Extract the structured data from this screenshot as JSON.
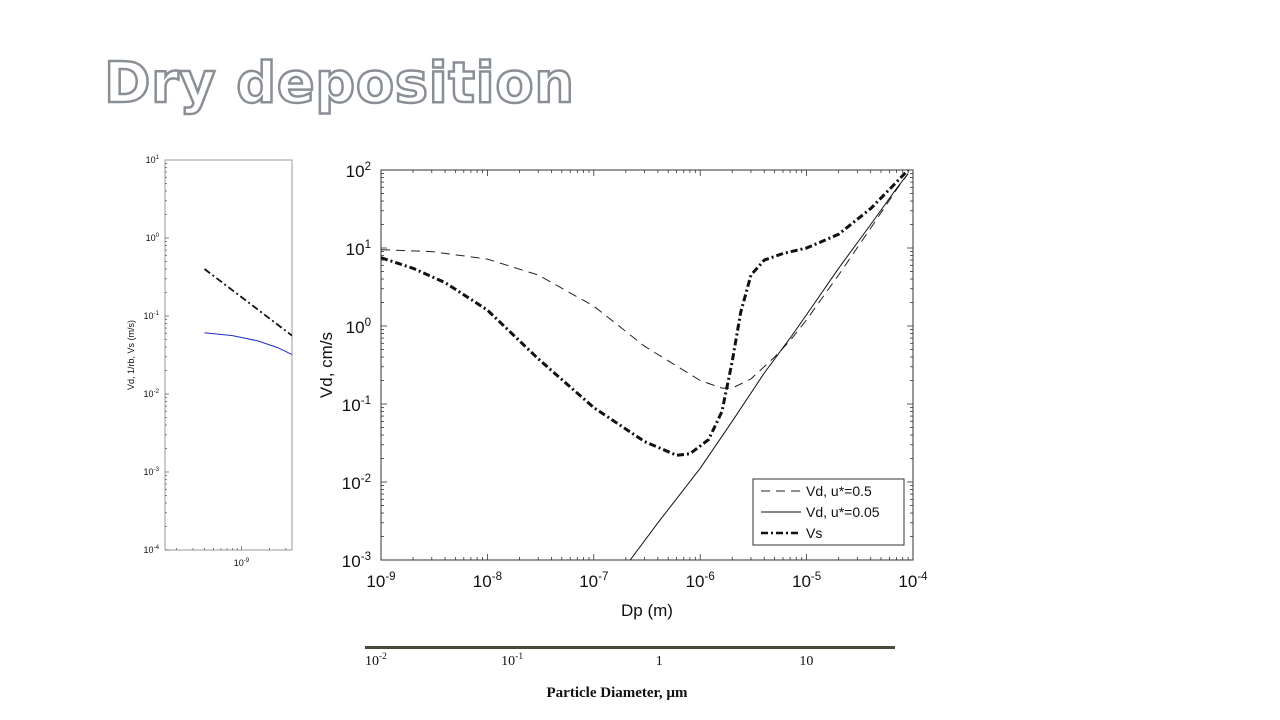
{
  "slide": {
    "title": "Dry deposition"
  },
  "chart_data": [
    {
      "id": "left-partial",
      "type": "line",
      "scale": "log-log",
      "xlim": [
        1.5e-10,
        3.5e-09
      ],
      "ylim": [
        0.0001,
        10
      ],
      "ylabel": "Vd, 1/rb, Vs (m/s)",
      "xlabel": "",
      "y_tick_labels": [
        {
          "v": 10,
          "b": "10",
          "e": "1"
        },
        {
          "v": 1,
          "b": "10",
          "e": "0"
        },
        {
          "v": 0.1,
          "b": "10",
          "e": "-1"
        },
        {
          "v": 0.01,
          "b": "10",
          "e": "-2"
        },
        {
          "v": 0.001,
          "b": "10",
          "e": "-3"
        },
        {
          "v": 0.0001,
          "b": "10",
          "e": "-4"
        }
      ],
      "x_tick_labels": [
        {
          "v": 1e-09,
          "b": "10",
          "e": "-9"
        }
      ],
      "series": [
        {
          "style": "dashdot",
          "color": "#111111",
          "x": [
            4e-10,
            3.5e-09
          ],
          "y": [
            0.4,
            0.056
          ]
        },
        {
          "style": "solid",
          "color": "#1f2fbf",
          "x": [
            4e-10,
            8e-10,
            1.5e-09,
            2.5e-09,
            3.5e-09
          ],
          "y": [
            0.061,
            0.056,
            0.048,
            0.039,
            0.032
          ]
        }
      ]
    },
    {
      "id": "main",
      "type": "line",
      "scale": "log-log",
      "xlim": [
        1e-09,
        0.0001
      ],
      "ylim": [
        0.001,
        100
      ],
      "xlabel": "Dp (m)",
      "ylabel": "Vd, cm/s",
      "grid": false,
      "legend_position": "bottom-right",
      "x_tick_labels": [
        {
          "v": 1e-09,
          "b": "10",
          "e": "-9"
        },
        {
          "v": 1e-08,
          "b": "10",
          "e": "-8"
        },
        {
          "v": 1e-07,
          "b": "10",
          "e": "-7"
        },
        {
          "v": 1e-06,
          "b": "10",
          "e": "-6"
        },
        {
          "v": 1e-05,
          "b": "10",
          "e": "-5"
        },
        {
          "v": 0.0001,
          "b": "10",
          "e": "-4"
        }
      ],
      "y_tick_labels": [
        {
          "v": 100,
          "b": "10",
          "e": "2"
        },
        {
          "v": 10,
          "b": "10",
          "e": "1"
        },
        {
          "v": 1,
          "b": "10",
          "e": "0"
        },
        {
          "v": 0.1,
          "b": "10",
          "e": "-1"
        },
        {
          "v": 0.01,
          "b": "10",
          "e": "-2"
        },
        {
          "v": 0.001,
          "b": "10",
          "e": "-3"
        }
      ],
      "series": [
        {
          "name": "Vd, u*=0.5",
          "style": "dashed",
          "color": "#222222",
          "x": [
            1e-09,
            3e-09,
            1e-08,
            3e-08,
            1e-07,
            3e-07,
            1e-06,
            1.6e-06,
            2e-06,
            3e-06,
            5e-06,
            7e-06,
            1e-05,
            2e-05,
            4e-05,
            7e-05,
            9e-05
          ],
          "y": [
            9.5,
            9,
            7.2,
            4.5,
            1.8,
            0.55,
            0.2,
            0.16,
            0.16,
            0.21,
            0.4,
            0.65,
            1.2,
            4.5,
            18,
            56,
            90
          ]
        },
        {
          "name": "Vd, u*=0.05",
          "style": "solid",
          "color": "#111111",
          "x": [
            2.2e-07,
            4e-07,
            7e-07,
            1e-06,
            2e-06,
            4e-06,
            7e-06,
            1e-05,
            2e-05,
            4e-05,
            7e-05,
            9e-05
          ],
          "y": [
            0.001,
            0.003,
            0.008,
            0.015,
            0.06,
            0.25,
            0.7,
            1.4,
            5.5,
            20,
            58,
            90
          ]
        },
        {
          "name": "Vs",
          "style": "dashdot-bold",
          "color": "#111111",
          "x": [
            1e-09,
            2e-09,
            4e-09,
            1e-08,
            3e-08,
            1e-07,
            3e-07,
            6e-07,
            8e-07,
            1.2e-06,
            1.6e-06,
            2e-06,
            2.4e-06,
            3e-06,
            4e-06,
            6e-06,
            1e-05,
            2e-05,
            4e-05,
            7e-05,
            9e-05
          ],
          "y": [
            7.5,
            5.5,
            3.6,
            1.6,
            0.38,
            0.09,
            0.033,
            0.022,
            0.023,
            0.035,
            0.08,
            0.35,
            1.5,
            4.5,
            7,
            8.5,
            10,
            15,
            32,
            70,
            100
          ]
        }
      ]
    },
    {
      "id": "secondary-axis",
      "type": "axis",
      "scale": "log",
      "xlim": [
        0.01,
        40
      ],
      "xlabel": "Particle Diameter, µm",
      "x_tick_labels": [
        {
          "v": 0.01,
          "b": "10",
          "e": "-2"
        },
        {
          "v": 0.1,
          "b": "10",
          "e": "-1"
        },
        {
          "v": 1,
          "b": "1",
          "e": ""
        },
        {
          "v": 10,
          "b": "10",
          "e": ""
        }
      ]
    }
  ]
}
